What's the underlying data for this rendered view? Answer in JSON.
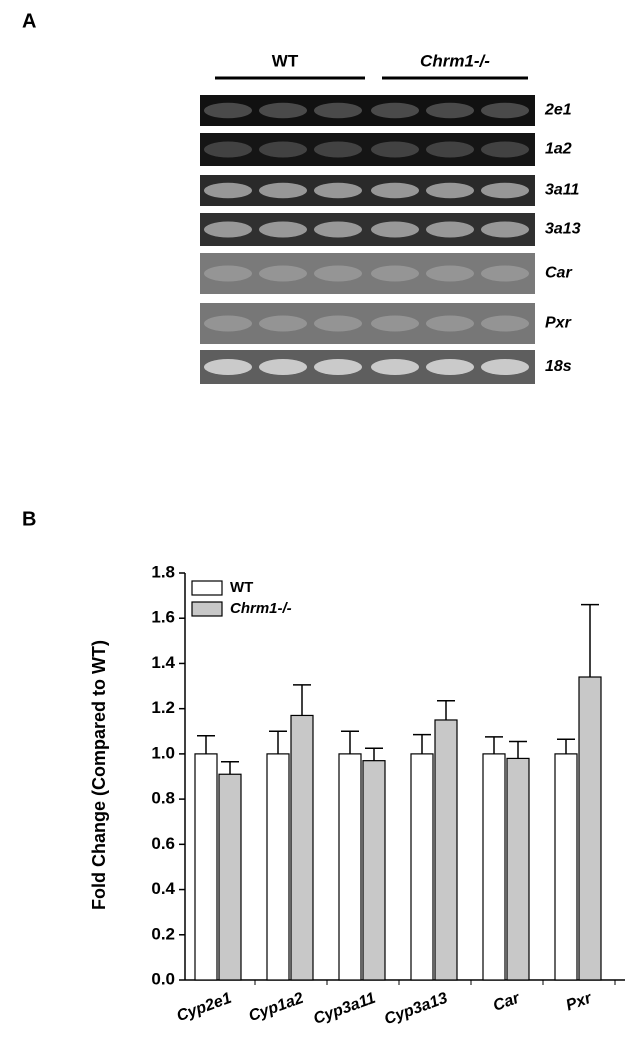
{
  "panel_a": {
    "label": "A",
    "groups": [
      "WT",
      "Chrm1-/-"
    ],
    "rows": [
      "2e1",
      "1a2",
      "3a11",
      "3a13",
      "Car",
      "Pxr",
      "18s"
    ]
  },
  "chart_data": {
    "type": "bar",
    "panel_label": "B",
    "y_label": "Fold Change (Compared to WT)",
    "categories": [
      "Cyp2e1",
      "Cyp1a2",
      "Cyp3a11",
      "Cyp3a13",
      "Car",
      "Pxr"
    ],
    "series": [
      {
        "name": "WT",
        "color": "#ffffff",
        "values": [
          1.0,
          1.0,
          1.0,
          1.0,
          1.0,
          1.0
        ],
        "errors": [
          0.08,
          0.1,
          0.1,
          0.085,
          0.075,
          0.065
        ]
      },
      {
        "name": "Chrm1-/-",
        "color": "#c8c8c8",
        "values": [
          0.91,
          1.17,
          0.97,
          1.15,
          0.98,
          1.34
        ],
        "errors": [
          0.055,
          0.135,
          0.055,
          0.085,
          0.075,
          0.32
        ]
      }
    ],
    "ylim": [
      0,
      1.8
    ],
    "yticks": [
      {
        "value": 0,
        "label": "0.0"
      },
      0.2,
      0.4,
      0.6,
      0.8,
      {
        "value": 1,
        "label": "1.0"
      },
      1.2,
      1.4,
      1.6,
      1.8
    ]
  }
}
